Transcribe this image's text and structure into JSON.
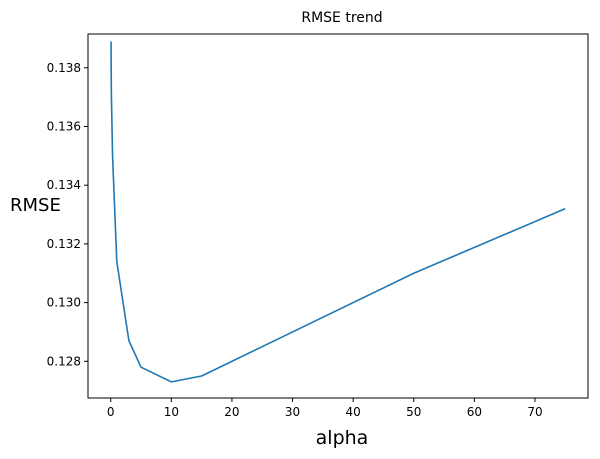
{
  "chart_data": {
    "type": "line",
    "title": "RMSE trend",
    "xlabel": "alpha",
    "ylabel": "RMSE",
    "xlim": [
      -3.75,
      78.75
    ],
    "ylim": [
      0.12675,
      0.13915
    ],
    "xticks": [
      0,
      10,
      20,
      30,
      40,
      50,
      60,
      70
    ],
    "yticks": [
      0.128,
      0.13,
      0.132,
      0.134,
      0.136,
      0.138
    ],
    "ytick_labels": [
      "0.128",
      "0.130",
      "0.132",
      "0.134",
      "0.136",
      "0.138"
    ],
    "grid": false,
    "line_color": "#1f77b4",
    "series": [
      {
        "x": [
          0.05,
          0.1,
          0.3,
          1,
          3,
          5,
          10,
          15,
          30,
          50,
          75
        ],
        "y": [
          0.1389,
          0.1372,
          0.135,
          0.1314,
          0.1287,
          0.1278,
          0.1273,
          0.1275,
          0.129,
          0.131,
          0.1332
        ]
      }
    ]
  }
}
